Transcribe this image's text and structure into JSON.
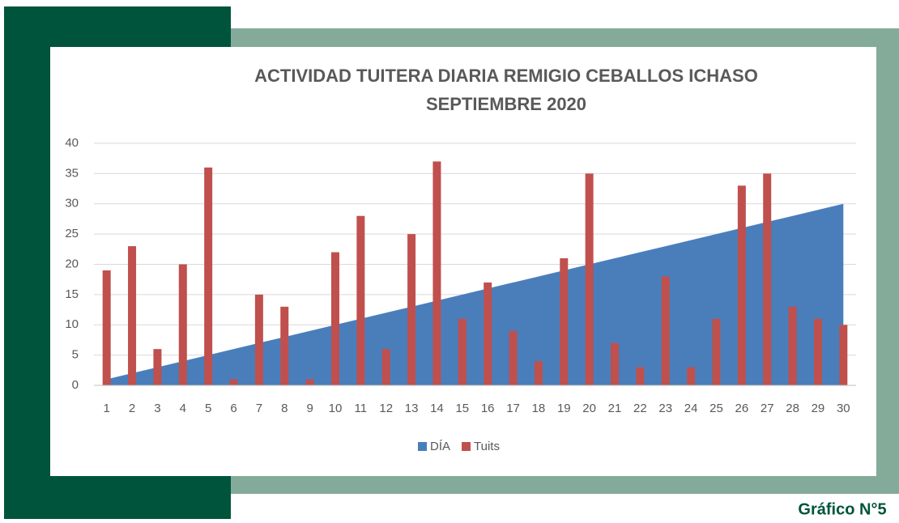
{
  "chart_data": {
    "type": "bar_area",
    "title": "ACTIVIDAD TUITERA DIARIA REMIGIO CEBALLOS ICHASO",
    "subtitle": "SEPTIEMBRE 2020",
    "categories": [
      1,
      2,
      3,
      4,
      5,
      6,
      7,
      8,
      9,
      10,
      11,
      12,
      13,
      14,
      15,
      16,
      17,
      18,
      19,
      20,
      21,
      22,
      23,
      24,
      25,
      26,
      27,
      28,
      29,
      30
    ],
    "series": [
      {
        "name": "DÍA",
        "type": "area",
        "color": "#4a7ebb",
        "values": [
          1,
          2,
          3,
          4,
          5,
          6,
          7,
          8,
          9,
          10,
          11,
          12,
          13,
          14,
          15,
          16,
          17,
          18,
          19,
          20,
          21,
          22,
          23,
          24,
          25,
          26,
          27,
          28,
          29,
          30
        ]
      },
      {
        "name": "Tuits",
        "type": "bar",
        "color": "#c0504d",
        "values": [
          19,
          23,
          6,
          20,
          36,
          1,
          15,
          13,
          1,
          22,
          28,
          6,
          25,
          37,
          11,
          17,
          9,
          4,
          21,
          35,
          7,
          3,
          18,
          3,
          11,
          33,
          35,
          13,
          11,
          10
        ]
      }
    ],
    "ylim": [
      0,
      40
    ],
    "yticks": [
      0,
      5,
      10,
      15,
      20,
      25,
      30,
      35,
      40
    ],
    "grid": true,
    "legend": "bottom"
  },
  "caption": "Gráfico N°5"
}
